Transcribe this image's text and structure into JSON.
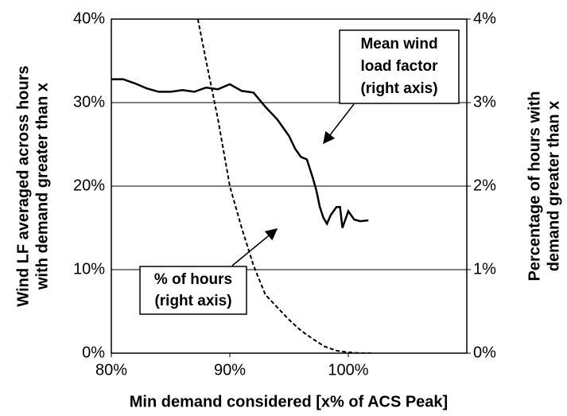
{
  "chart_data": {
    "type": "line",
    "x_label": "Min demand considered [x% of ACS Peak]",
    "y_label": [
      "Wind LF averaged  across hours",
      "with demand greater than x"
    ],
    "y2_label": [
      "Percentage of hours with",
      "demand greater than x"
    ],
    "xlim": [
      80,
      110
    ],
    "xticks": [
      {
        "value": 80,
        "label": "80%"
      },
      {
        "value": 90,
        "label": "90%"
      },
      {
        "value": 100,
        "label": "100%"
      }
    ],
    "ylim": [
      0,
      40
    ],
    "yticks": [
      {
        "value": 0,
        "label": "0%"
      },
      {
        "value": 10,
        "label": "10%"
      },
      {
        "value": 20,
        "label": "20%"
      },
      {
        "value": 30,
        "label": "30%"
      },
      {
        "value": 40,
        "label": "40%"
      }
    ],
    "y2lim": [
      0,
      4
    ],
    "y2ticks": [
      {
        "value": 0,
        "label": "0%"
      },
      {
        "value": 1,
        "label": "1%"
      },
      {
        "value": 2,
        "label": "2%"
      },
      {
        "value": 3,
        "label": "3%"
      },
      {
        "value": 4,
        "label": "4%"
      }
    ],
    "grid": true,
    "annotations": [
      [
        "Mean wind",
        "load factor",
        "(right axis)"
      ],
      [
        "% of hours",
        "(right axis)"
      ]
    ],
    "series": [
      {
        "color": "#000000",
        "dash": false,
        "x": [
          80,
          81,
          82,
          83,
          84,
          85,
          86,
          87,
          88,
          89,
          90,
          91,
          92,
          93,
          94,
          95,
          95.5,
          96,
          96.5,
          97,
          97.3,
          97.6,
          97.9,
          98.2,
          98.5,
          99,
          99.3,
          99.5,
          100,
          100.5,
          101,
          101.7
        ],
        "values": [
          32.8,
          32.8,
          32.3,
          31.7,
          31.3,
          31.3,
          31.5,
          31.3,
          31.8,
          31.6,
          32.2,
          31.4,
          31.2,
          29.5,
          28.0,
          26.0,
          24.5,
          23.5,
          23.2,
          21.0,
          19.5,
          17.5,
          16.2,
          15.5,
          16.5,
          17.5,
          17.5,
          15.0,
          17.0,
          16.0,
          15.8,
          15.9
        ]
      },
      {
        "color": "#000000",
        "dash": true,
        "axis": "y2",
        "x": [
          87.3,
          88,
          89,
          90,
          91,
          92,
          93,
          94,
          95,
          96,
          97,
          98,
          99,
          100,
          101,
          102
        ],
        "values": [
          4.0,
          3.5,
          2.8,
          2.0,
          1.5,
          1.05,
          0.7,
          0.55,
          0.4,
          0.27,
          0.17,
          0.08,
          0.03,
          0.01,
          0,
          0
        ]
      }
    ]
  }
}
